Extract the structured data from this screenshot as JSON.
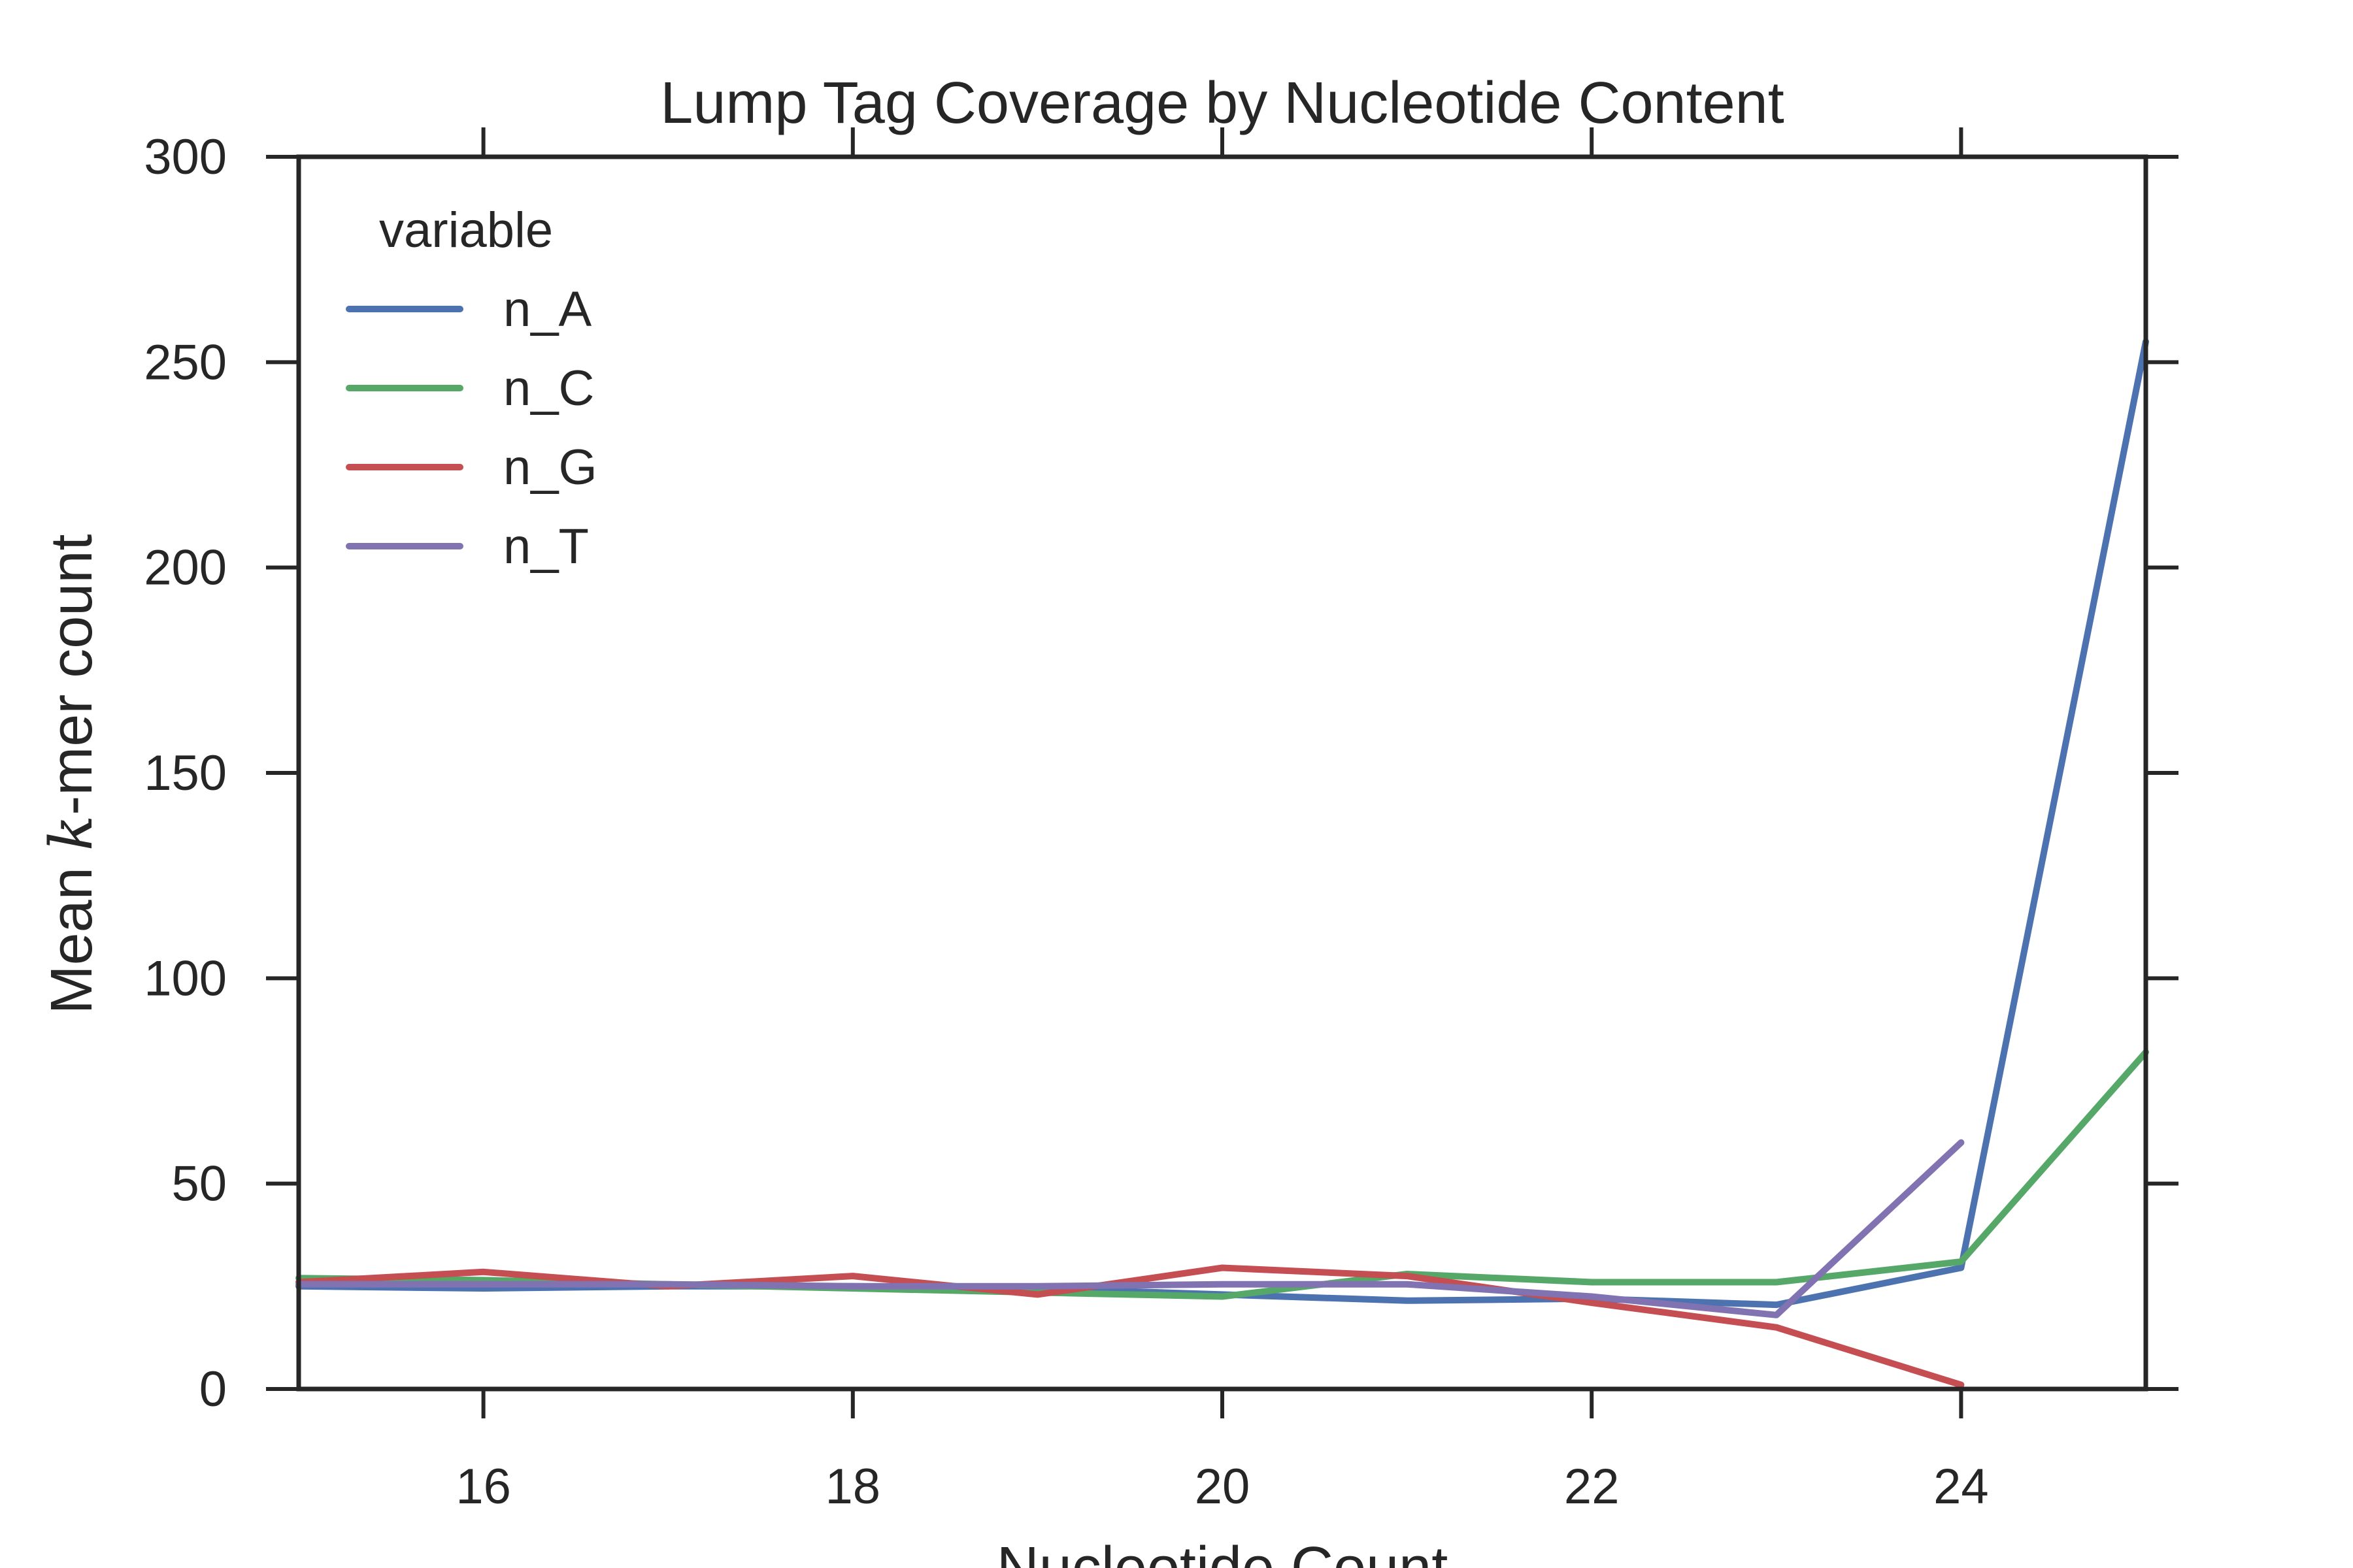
{
  "chart_data": {
    "type": "line",
    "title": "Lump Tag Coverage by Nucleotide Content",
    "xlabel": "Nucleotide Count",
    "ylabel_prefix": "Mean ",
    "ylabel_k": "k",
    "ylabel_suffix": "-mer count",
    "xlim": [
      15,
      25
    ],
    "ylim": [
      0,
      300
    ],
    "xticks": [
      16,
      18,
      20,
      22,
      24
    ],
    "yticks": [
      0,
      50,
      100,
      150,
      200,
      250,
      300
    ],
    "grid": false,
    "legend": {
      "title": "variable",
      "placement": "top-left"
    },
    "series": [
      {
        "name": "n_A",
        "color": "#4c72b0",
        "x": [
          15,
          16,
          17,
          18,
          19,
          20,
          21,
          22,
          23,
          24,
          25
        ],
        "y": [
          25,
          24.5,
          25,
          25,
          24.5,
          23,
          21.5,
          22,
          20.5,
          29.5,
          255
        ]
      },
      {
        "name": "n_C",
        "color": "#55a868",
        "x": [
          15,
          16,
          17,
          18,
          19,
          20,
          21,
          22,
          23,
          24,
          25
        ],
        "y": [
          27,
          26.5,
          25.5,
          24.5,
          23.5,
          22.5,
          28,
          26,
          26,
          31,
          82
        ]
      },
      {
        "name": "n_G",
        "color": "#c44e52",
        "x": [
          15,
          16,
          17,
          18,
          19,
          20,
          21,
          22,
          23,
          24
        ],
        "y": [
          26,
          28.5,
          25,
          27.5,
          23,
          29.5,
          27.5,
          21,
          15,
          1
        ]
      },
      {
        "name": "n_T",
        "color": "#8172b2",
        "x": [
          15,
          16,
          17,
          18,
          19,
          20,
          21,
          22,
          23,
          24
        ],
        "y": [
          25.5,
          25.5,
          25.5,
          25,
          25,
          25.5,
          25.5,
          22.5,
          18,
          60
        ]
      }
    ]
  }
}
